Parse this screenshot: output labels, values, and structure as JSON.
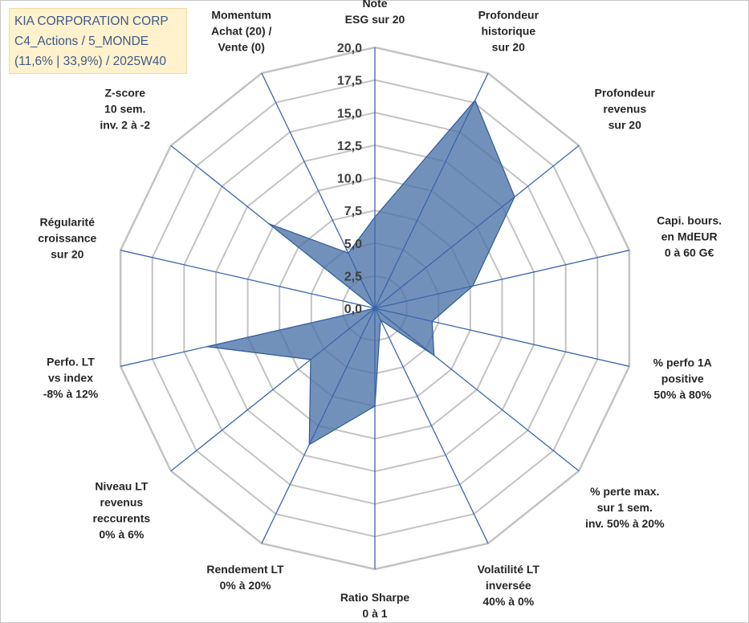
{
  "header": {
    "line1": "KIA CORPORATION CORP",
    "line2": "C4_Actions / 5_MONDE",
    "line3": "(11,6% | 33,9%) / 2025W40"
  },
  "colors": {
    "series_fill": "#4a72a6",
    "series_line": "#2f5b96",
    "spoke": "#3a66ad",
    "grid": "#c3c3c3",
    "tick_text": "#404040",
    "label_text": "#262626",
    "info_bg": "#fff2cc",
    "info_text": "#3d5a8c"
  },
  "chart_data": {
    "type": "radar",
    "title": "",
    "rmin": 0,
    "rmax": 20,
    "tick_step": 2.5,
    "grid_levels": 8,
    "tick_labels": [
      "0,0",
      "2,5",
      "5,0",
      "7,5",
      "10,0",
      "12,5",
      "15,0",
      "17,5",
      "20,0"
    ],
    "axes": [
      {
        "lines": [
          "Note",
          "ESG sur 20"
        ]
      },
      {
        "lines": [
          "Profondeur",
          "historique",
          "sur 20"
        ]
      },
      {
        "lines": [
          "Profondeur",
          "revenus",
          "sur 20"
        ]
      },
      {
        "lines": [
          "Capi. bours.",
          "en MdEUR",
          "0 à 60 G€"
        ]
      },
      {
        "lines": [
          "% perfo 1A",
          "positive",
          "50% à 80%"
        ]
      },
      {
        "lines": [
          "% perte max.",
          "sur 1 sem.",
          "inv. 50% à 20%"
        ]
      },
      {
        "lines": [
          "Volatilité LT",
          "inversée",
          "40% à 0%"
        ]
      },
      {
        "lines": [
          "Ratio Sharpe",
          "0 à 1"
        ]
      },
      {
        "lines": [
          "Rendement LT",
          "0% à 20%"
        ]
      },
      {
        "lines": [
          "Niveau LT",
          "revenus",
          "reccurents",
          "0% à 6%"
        ]
      },
      {
        "lines": [
          "Perfo. LT",
          "vs index",
          "-8% à 12%"
        ]
      },
      {
        "lines": [
          "Régularité",
          "croissance",
          "sur 20"
        ]
      },
      {
        "lines": [
          "Z-score",
          "10 sem.",
          "inv. 2 à -2"
        ]
      },
      {
        "lines": [
          "Momentum",
          "Achat (20) /",
          "Vente (0)"
        ]
      }
    ],
    "series": [
      {
        "name": "KIA CORPORATION CORP",
        "values": [
          7.0,
          17.7,
          13.7,
          7.7,
          4.5,
          5.8,
          1.0,
          7.5,
          11.6,
          6.3,
          13.2,
          0.0,
          10.4,
          4.7
        ]
      }
    ]
  }
}
